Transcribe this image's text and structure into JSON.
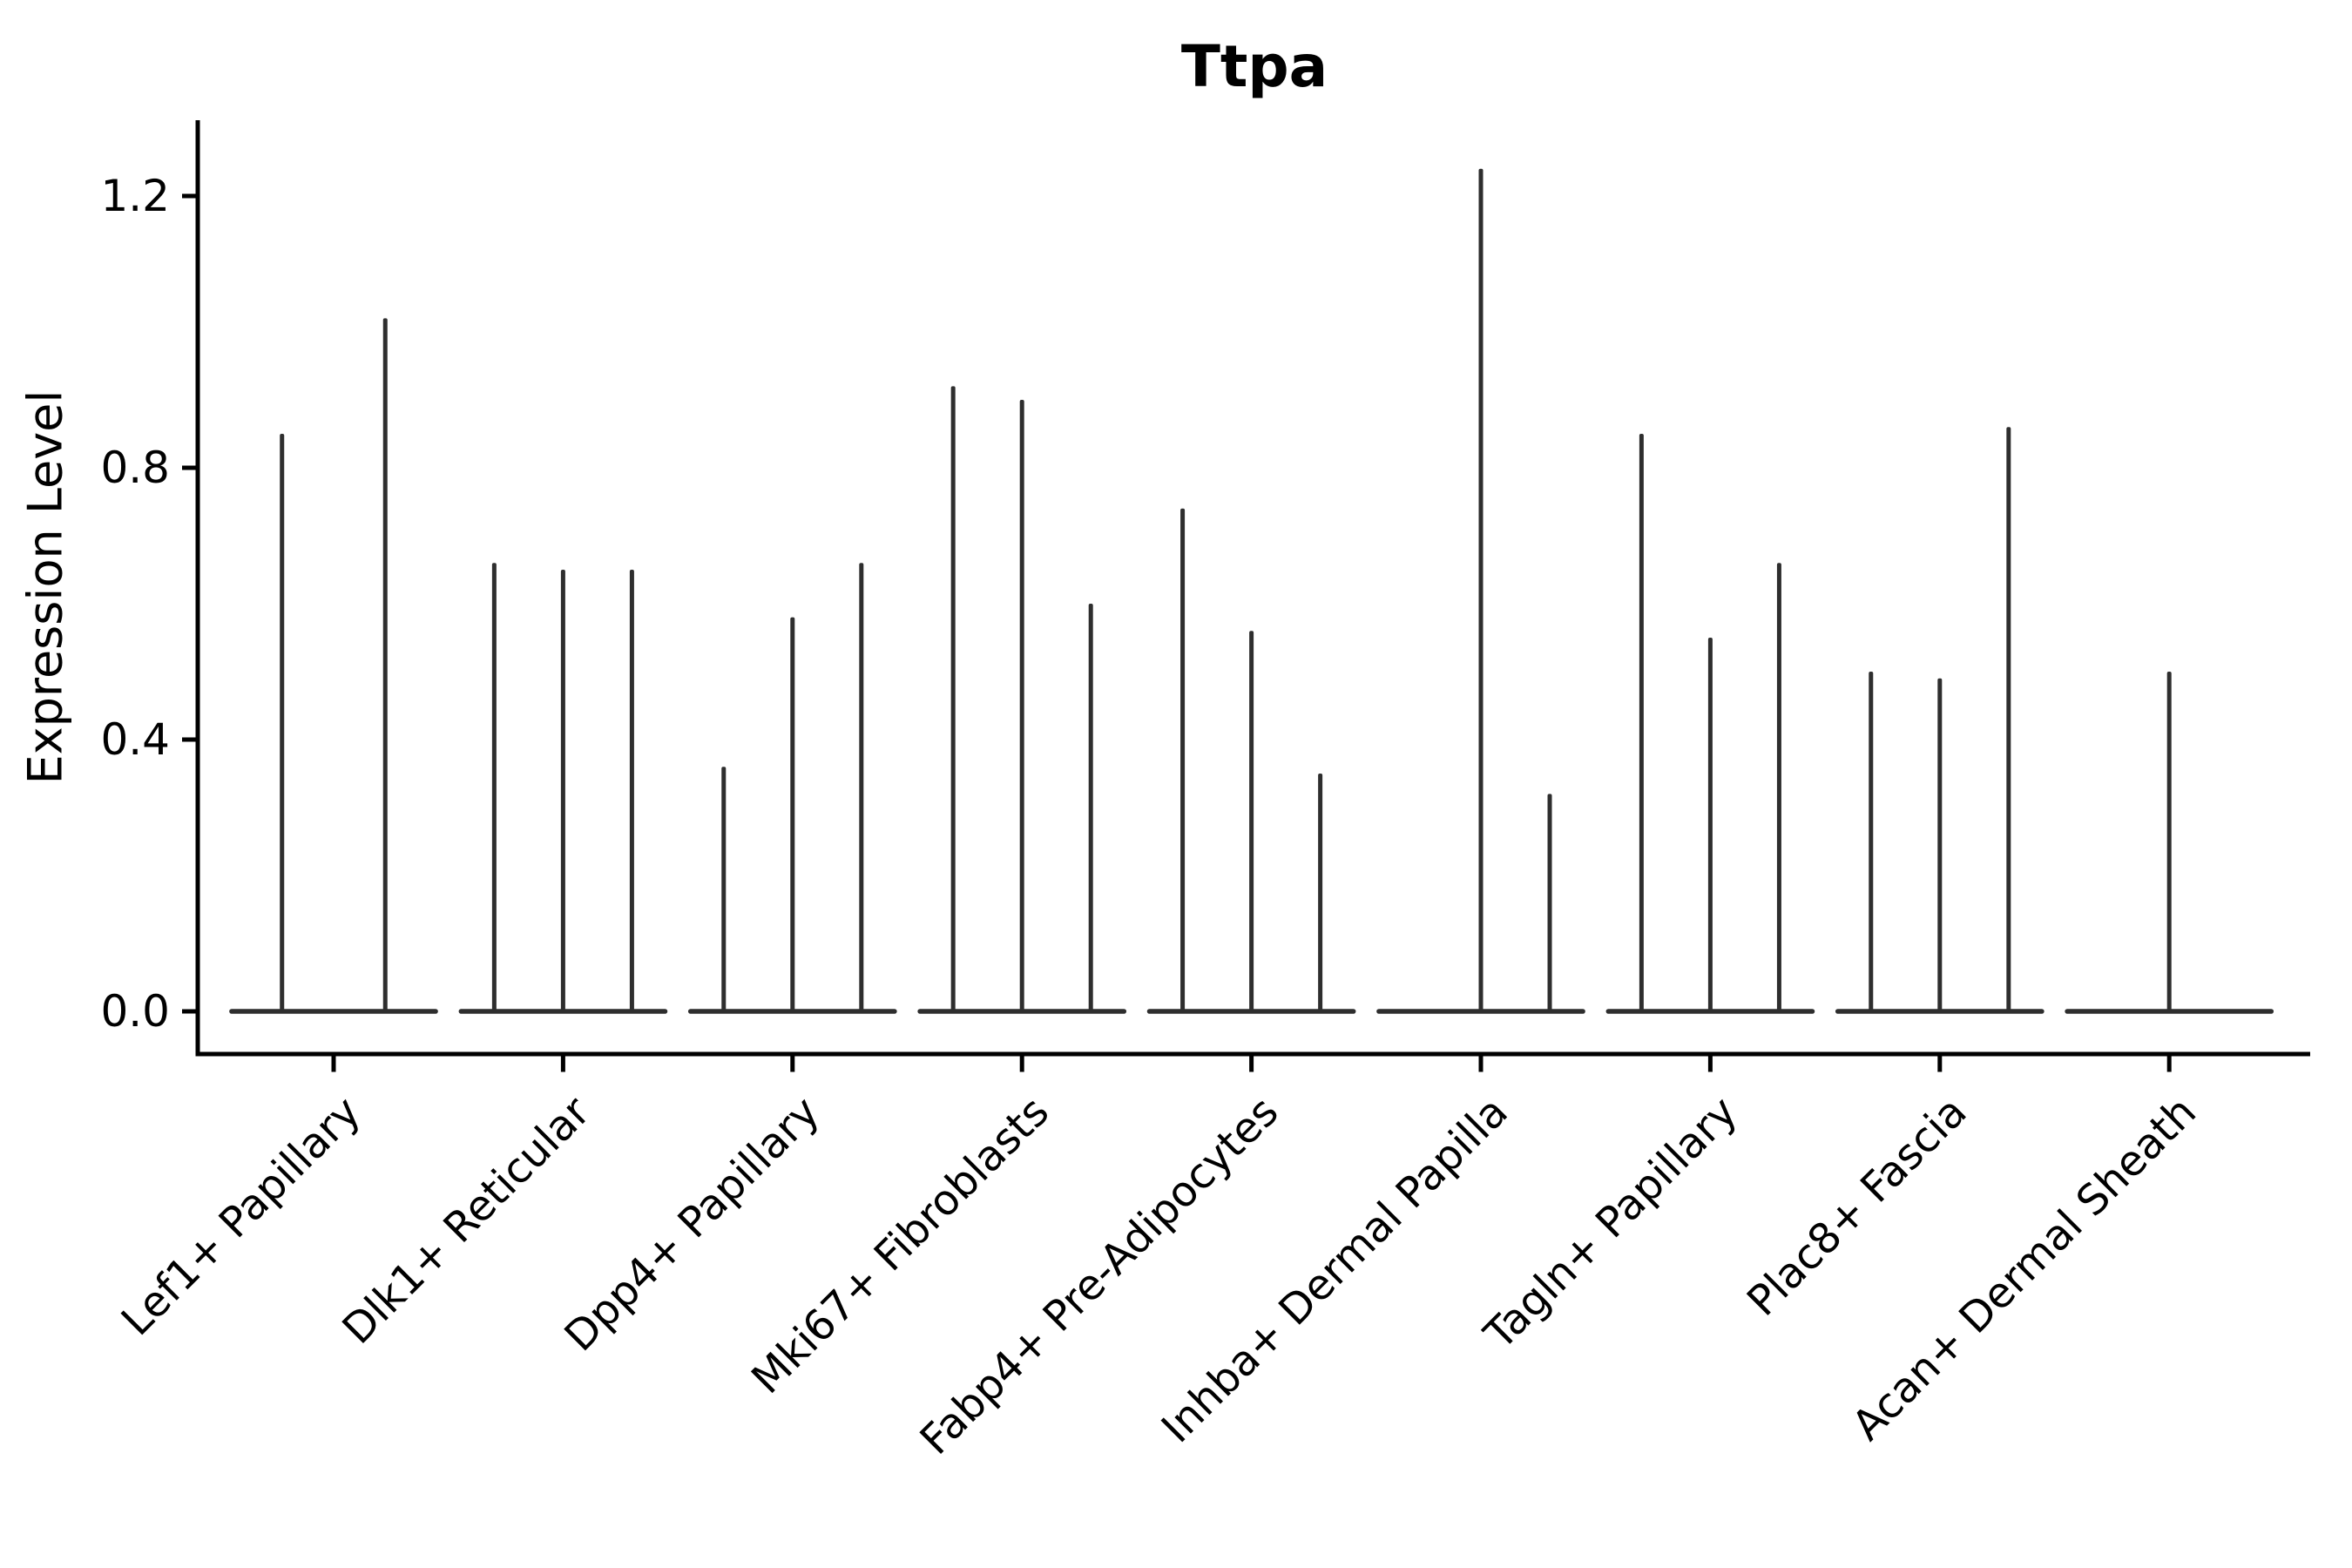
{
  "figure": {
    "background": "#ffffff"
  },
  "chart_data": {
    "type": "violin",
    "title": "Ttpa",
    "ylabel": "Expression Level",
    "xlabel": "",
    "yticks": [
      "0.0",
      "0.4",
      "0.8",
      "1.2"
    ],
    "ytick_values": [
      0.0,
      0.4,
      0.8,
      1.2
    ],
    "ylim": [
      -0.07,
      1.31
    ],
    "grid": false,
    "legend": "none",
    "x_tick_rotation": 45,
    "colors": {
      "violin": "#2e2e2e",
      "axis": "#000000",
      "text": "#000000",
      "background": "#ffffff"
    },
    "categories": [
      "Lef1+ Papillary",
      "Dlk1+ Reticular",
      "Dpp4+ Papillary",
      "Mki67+ Fibroblasts",
      "Fabp4+ Pre-Adipocytes",
      "Inhba+ Dermal Papilla",
      "Tagln+ Papillary",
      "Plac8+ Fascia",
      "Acan+ Dermal Sheath"
    ],
    "violins": [
      {
        "category": "Lef1+ Papillary",
        "base_halfwidth_frac": 0.455,
        "needles": [
          {
            "offset_frac": -0.225,
            "max": 0.85
          },
          {
            "offset_frac": 0.225,
            "max": 1.02
          }
        ]
      },
      {
        "category": "Dlk1+ Reticular",
        "base_halfwidth_frac": 0.455,
        "needles": [
          {
            "offset_frac": -0.3,
            "max": 0.66
          },
          {
            "offset_frac": 0.0,
            "max": 0.65
          },
          {
            "offset_frac": 0.3,
            "max": 0.65
          }
        ]
      },
      {
        "category": "Dpp4+ Papillary",
        "base_halfwidth_frac": 0.455,
        "needles": [
          {
            "offset_frac": -0.3,
            "max": 0.36
          },
          {
            "offset_frac": 0.0,
            "max": 0.58
          },
          {
            "offset_frac": 0.3,
            "max": 0.66
          }
        ]
      },
      {
        "category": "Mki67+ Fibroblasts",
        "base_halfwidth_frac": 0.455,
        "needles": [
          {
            "offset_frac": -0.3,
            "max": 0.92
          },
          {
            "offset_frac": 0.0,
            "max": 0.9
          },
          {
            "offset_frac": 0.3,
            "max": 0.6
          }
        ]
      },
      {
        "category": "Fabp4+ Pre-Adipocytes",
        "base_halfwidth_frac": 0.455,
        "needles": [
          {
            "offset_frac": -0.3,
            "max": 0.74
          },
          {
            "offset_frac": 0.0,
            "max": 0.56
          },
          {
            "offset_frac": 0.3,
            "max": 0.35
          }
        ]
      },
      {
        "category": "Inhba+ Dermal Papilla",
        "base_halfwidth_frac": 0.455,
        "needles": [
          {
            "offset_frac": 0.0,
            "max": 1.24
          },
          {
            "offset_frac": 0.3,
            "max": 0.32
          }
        ]
      },
      {
        "category": "Tagln+ Papillary",
        "base_halfwidth_frac": 0.455,
        "needles": [
          {
            "offset_frac": -0.3,
            "max": 0.85
          },
          {
            "offset_frac": 0.0,
            "max": 0.55
          },
          {
            "offset_frac": 0.3,
            "max": 0.66
          }
        ]
      },
      {
        "category": "Plac8+ Fascia",
        "base_halfwidth_frac": 0.455,
        "needles": [
          {
            "offset_frac": -0.3,
            "max": 0.5
          },
          {
            "offset_frac": 0.0,
            "max": 0.49
          },
          {
            "offset_frac": 0.3,
            "max": 0.86
          }
        ]
      },
      {
        "category": "Acan+ Dermal Sheath",
        "base_halfwidth_frac": 0.455,
        "needles": [
          {
            "offset_frac": 0.0,
            "max": 0.5
          }
        ]
      }
    ]
  }
}
